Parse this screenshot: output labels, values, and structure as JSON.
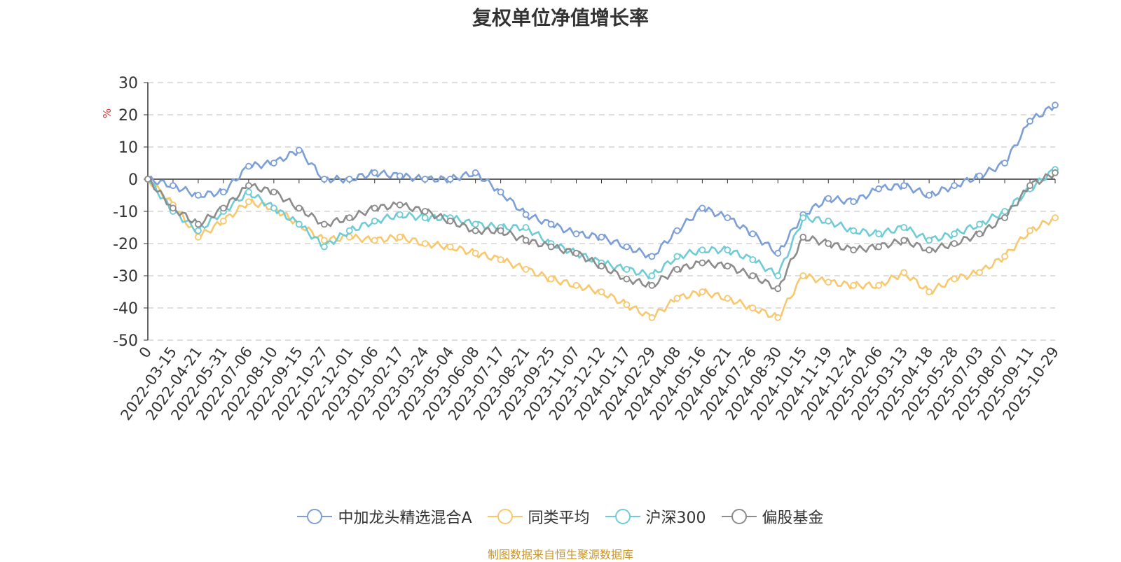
{
  "chart_data": {
    "type": "line",
    "title": "复权单位净值增长率",
    "ylabel": "%",
    "ylim": [
      -50,
      30
    ],
    "yticks": [
      30,
      20,
      10,
      0,
      -10,
      -20,
      -30,
      -40,
      -50
    ],
    "categories": [
      "0",
      "2022-03-15",
      "2022-04-21",
      "2022-05-31",
      "2022-07-06",
      "2022-08-10",
      "2022-09-15",
      "2022-10-27",
      "2022-12-01",
      "2023-01-06",
      "2023-02-17",
      "2023-03-24",
      "2023-05-04",
      "2023-06-08",
      "2023-07-17",
      "2023-08-21",
      "2023-09-25",
      "2023-11-07",
      "2023-12-12",
      "2024-01-17",
      "2024-02-29",
      "2024-04-08",
      "2024-05-16",
      "2024-06-21",
      "2024-07-26",
      "2024-08-30",
      "2024-10-15",
      "2024-11-19",
      "2024-12-24",
      "2025-02-06",
      "2025-03-13",
      "2025-04-18",
      "2025-05-28",
      "2025-07-03",
      "2025-08-07",
      "2025-09-11",
      "2025-10-29"
    ],
    "grid": true,
    "legend_position": "bottom",
    "series": [
      {
        "name": "中加龙头精选混合A",
        "color": "#7b9fd6",
        "values": [
          0,
          -2,
          -5,
          -4,
          4,
          5,
          9,
          0,
          0,
          2,
          1,
          0,
          0,
          2,
          -4,
          -11,
          -14,
          -17,
          -18,
          -21,
          -24,
          -16,
          -9,
          -12,
          -17,
          -23,
          -11,
          -6,
          -7,
          -3,
          -2,
          -5,
          -2,
          1,
          5,
          18,
          23
        ]
      },
      {
        "name": "同类平均",
        "color": "#f7c86e",
        "values": [
          0,
          -8,
          -18,
          -13,
          -7,
          -9,
          -14,
          -19,
          -18,
          -19,
          -18,
          -20,
          -21,
          -23,
          -25,
          -28,
          -31,
          -33,
          -35,
          -39,
          -43,
          -37,
          -35,
          -37,
          -40,
          -43,
          -30,
          -32,
          -33,
          -33,
          -29,
          -35,
          -31,
          -29,
          -24,
          -16,
          -12
        ]
      },
      {
        "name": "沪深300",
        "color": "#6fccd6",
        "values": [
          0,
          -10,
          -16,
          -10,
          -4,
          -9,
          -14,
          -21,
          -16,
          -13,
          -11,
          -12,
          -12,
          -14,
          -15,
          -15,
          -20,
          -23,
          -26,
          -28,
          -30,
          -24,
          -22,
          -22,
          -25,
          -30,
          -12,
          -13,
          -16,
          -17,
          -15,
          -19,
          -17,
          -14,
          -10,
          -3,
          3
        ]
      },
      {
        "name": "偏股基金",
        "color": "#8c8c8c",
        "values": [
          0,
          -9,
          -14,
          -9,
          -2,
          -4,
          -9,
          -14,
          -12,
          -9,
          -8,
          -10,
          -13,
          -16,
          -16,
          -19,
          -21,
          -23,
          -27,
          -31,
          -33,
          -28,
          -26,
          -27,
          -30,
          -34,
          -18,
          -20,
          -22,
          -21,
          -19,
          -22,
          -20,
          -17,
          -12,
          -2,
          2
        ]
      }
    ]
  },
  "legend": {
    "items": [
      {
        "label": "中加龙头精选混合A",
        "color": "#7b9fd6"
      },
      {
        "label": "同类平均",
        "color": "#f7c86e"
      },
      {
        "label": "沪深300",
        "color": "#6fccd6"
      },
      {
        "label": "偏股基金",
        "color": "#8c8c8c"
      }
    ]
  },
  "footer": {
    "source": "制图数据来自恒生聚源数据库"
  }
}
